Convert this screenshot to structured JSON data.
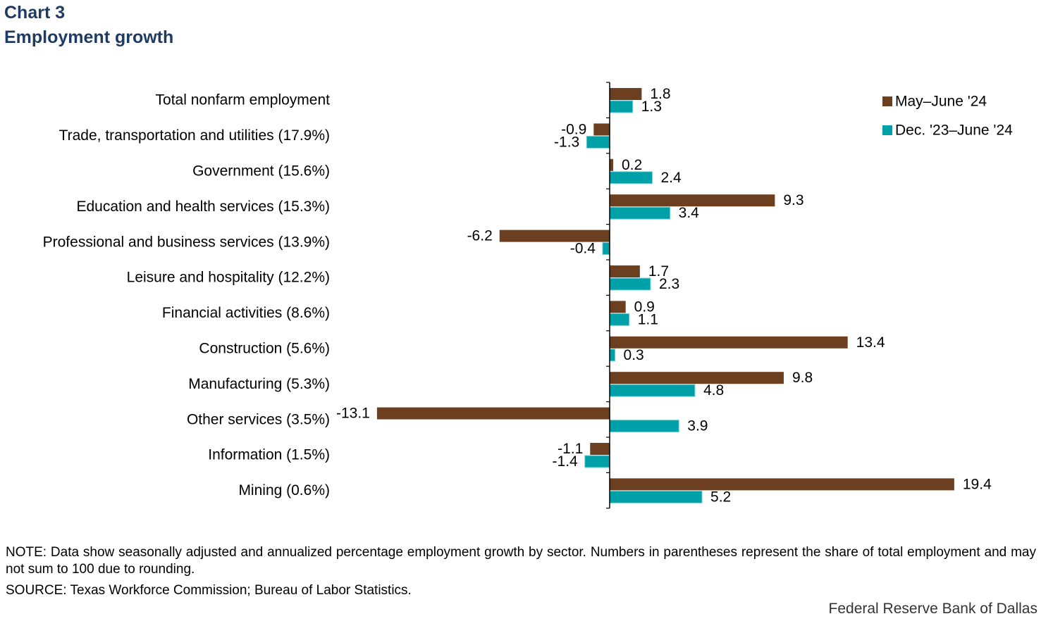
{
  "chart_title": "Chart 3",
  "chart_subtitle": "Employment growth",
  "chart_data": {
    "type": "bar",
    "orientation": "horizontal",
    "categories": [
      "Total nonfarm employment",
      "Trade, transportation and utilities (17.9%)",
      "Government (15.6%)",
      "Education and health services (15.3%)",
      "Professional and business services (13.9%)",
      "Leisure and hospitality (12.2%)",
      "Financial activities (8.6%)",
      "Construction (5.6%)",
      "Manufacturing (5.3%)",
      "Other services (3.5%)",
      "Information (1.5%)",
      "Mining (0.6%)"
    ],
    "series": [
      {
        "name": "May–June '24",
        "color": "#6b3f1f",
        "values": [
          1.8,
          -0.9,
          0.2,
          9.3,
          -6.2,
          1.7,
          0.9,
          13.4,
          9.8,
          -13.1,
          -1.1,
          19.4
        ]
      },
      {
        "name": "Dec. '23–June '24",
        "color": "#00a0a8",
        "values": [
          1.3,
          -1.3,
          2.4,
          3.4,
          -0.4,
          2.3,
          1.1,
          0.3,
          4.8,
          3.9,
          -1.4,
          5.2
        ]
      }
    ],
    "data_labels": [
      [
        "1.8",
        "-0.9",
        "0.2",
        "9.3",
        "-6.2",
        "1.7",
        "0.9",
        "13.4",
        "9.8",
        "-13.1",
        "-1.1",
        "19.4"
      ],
      [
        "1.3",
        "-1.3",
        "2.4",
        "3.4",
        "-0.4",
        "2.3",
        "1.1",
        "0.3",
        "4.8",
        "3.9",
        "-1.4",
        "5.2"
      ]
    ],
    "xlim": [
      -13.1,
      19.4
    ],
    "legend_position": "top-right",
    "grid": false
  },
  "note": "NOTE: Data show seasonally adjusted and annualized percentage employment growth by sector. Numbers in parentheses represent the share of total employment and may not sum to 100 due to rounding.",
  "source": "SOURCE: Texas Workforce Commission; Bureau of Labor Statistics.",
  "credit": "Federal Reserve Bank of Dallas"
}
